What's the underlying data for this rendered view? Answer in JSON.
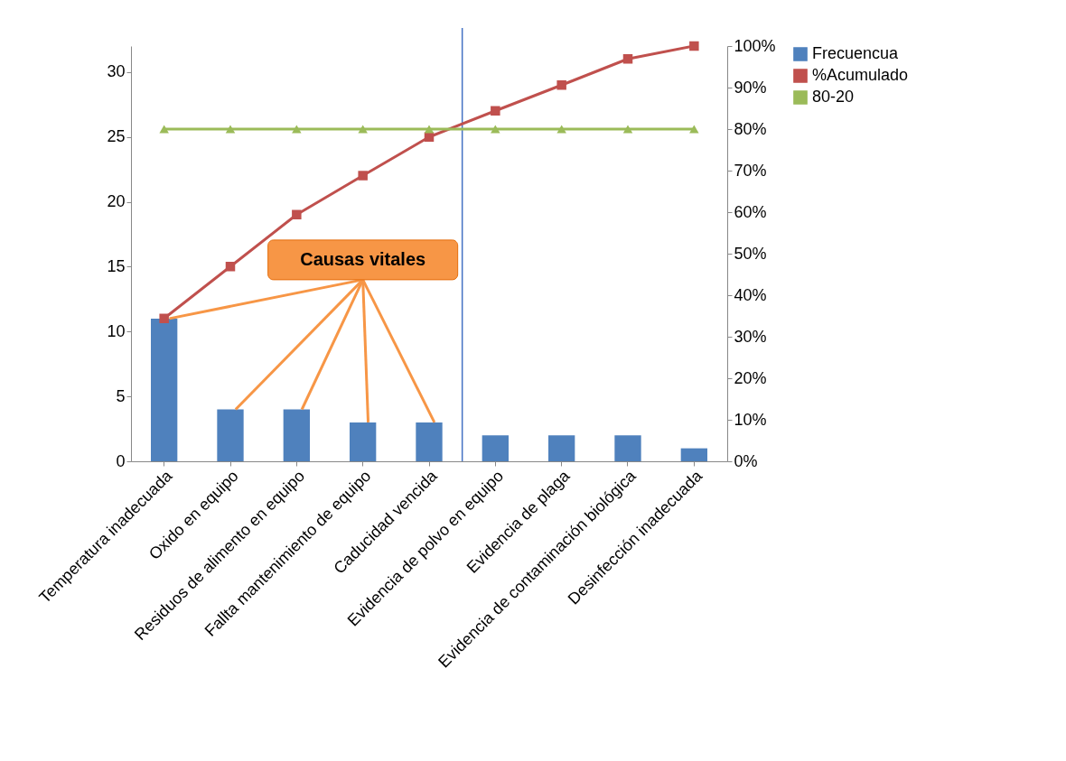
{
  "chart_data": {
    "type": "bar",
    "categories": [
      "Temperatura inadecuada",
      "Oxido en equipo",
      "Residuos de alimento en equipo",
      "Fallta mantenimiento de equipo",
      "Caducidad vencida",
      "Evidencia de polvo en equipo",
      "Evidencia de plaga",
      "Evidencia de contaminación biológica",
      "Desinfección inadecuada"
    ],
    "series": [
      {
        "name": "Frecuencua",
        "color": "#4f81bd",
        "values": [
          11,
          4,
          4,
          3,
          3,
          2,
          2,
          2,
          1
        ]
      },
      {
        "name": "%Acumulado",
        "type": "line",
        "axis": "y2",
        "marker": "square",
        "color": "#c0504d",
        "values": [
          34.4,
          46.9,
          59.4,
          68.8,
          78.1,
          84.4,
          90.6,
          96.9,
          100
        ]
      },
      {
        "name": "80-20",
        "type": "line",
        "axis": "y2",
        "marker": "triangle",
        "color": "#9bbb59",
        "values": [
          80,
          80,
          80,
          80,
          80,
          80,
          80,
          80,
          80
        ]
      }
    ],
    "ylim": [
      0,
      32
    ],
    "yticks": [
      0,
      5,
      10,
      15,
      20,
      25,
      30
    ],
    "y2lim": [
      0,
      100
    ],
    "y2ticks": [
      {
        "value": 0,
        "label": "0%"
      },
      {
        "value": 10,
        "label": "10%"
      },
      {
        "value": 20,
        "label": "20%"
      },
      {
        "value": 30,
        "label": "30%"
      },
      {
        "value": 40,
        "label": "40%"
      },
      {
        "value": 50,
        "label": "50%"
      },
      {
        "value": 60,
        "label": "60%"
      },
      {
        "value": 70,
        "label": "70%"
      },
      {
        "value": 80,
        "label": "80%"
      },
      {
        "value": 90,
        "label": "90%"
      },
      {
        "value": 100,
        "label": "100%"
      }
    ],
    "ref_lines": [
      {
        "axis": "x",
        "value": "Evidencia de polvo en equipo",
        "color": "#4472c4"
      }
    ],
    "annotations": [
      {
        "text": "Causas vitales",
        "x": "Fallta mantenimiento de equipo",
        "y": 3
      }
    ],
    "legend": "right",
    "grid": false
  }
}
